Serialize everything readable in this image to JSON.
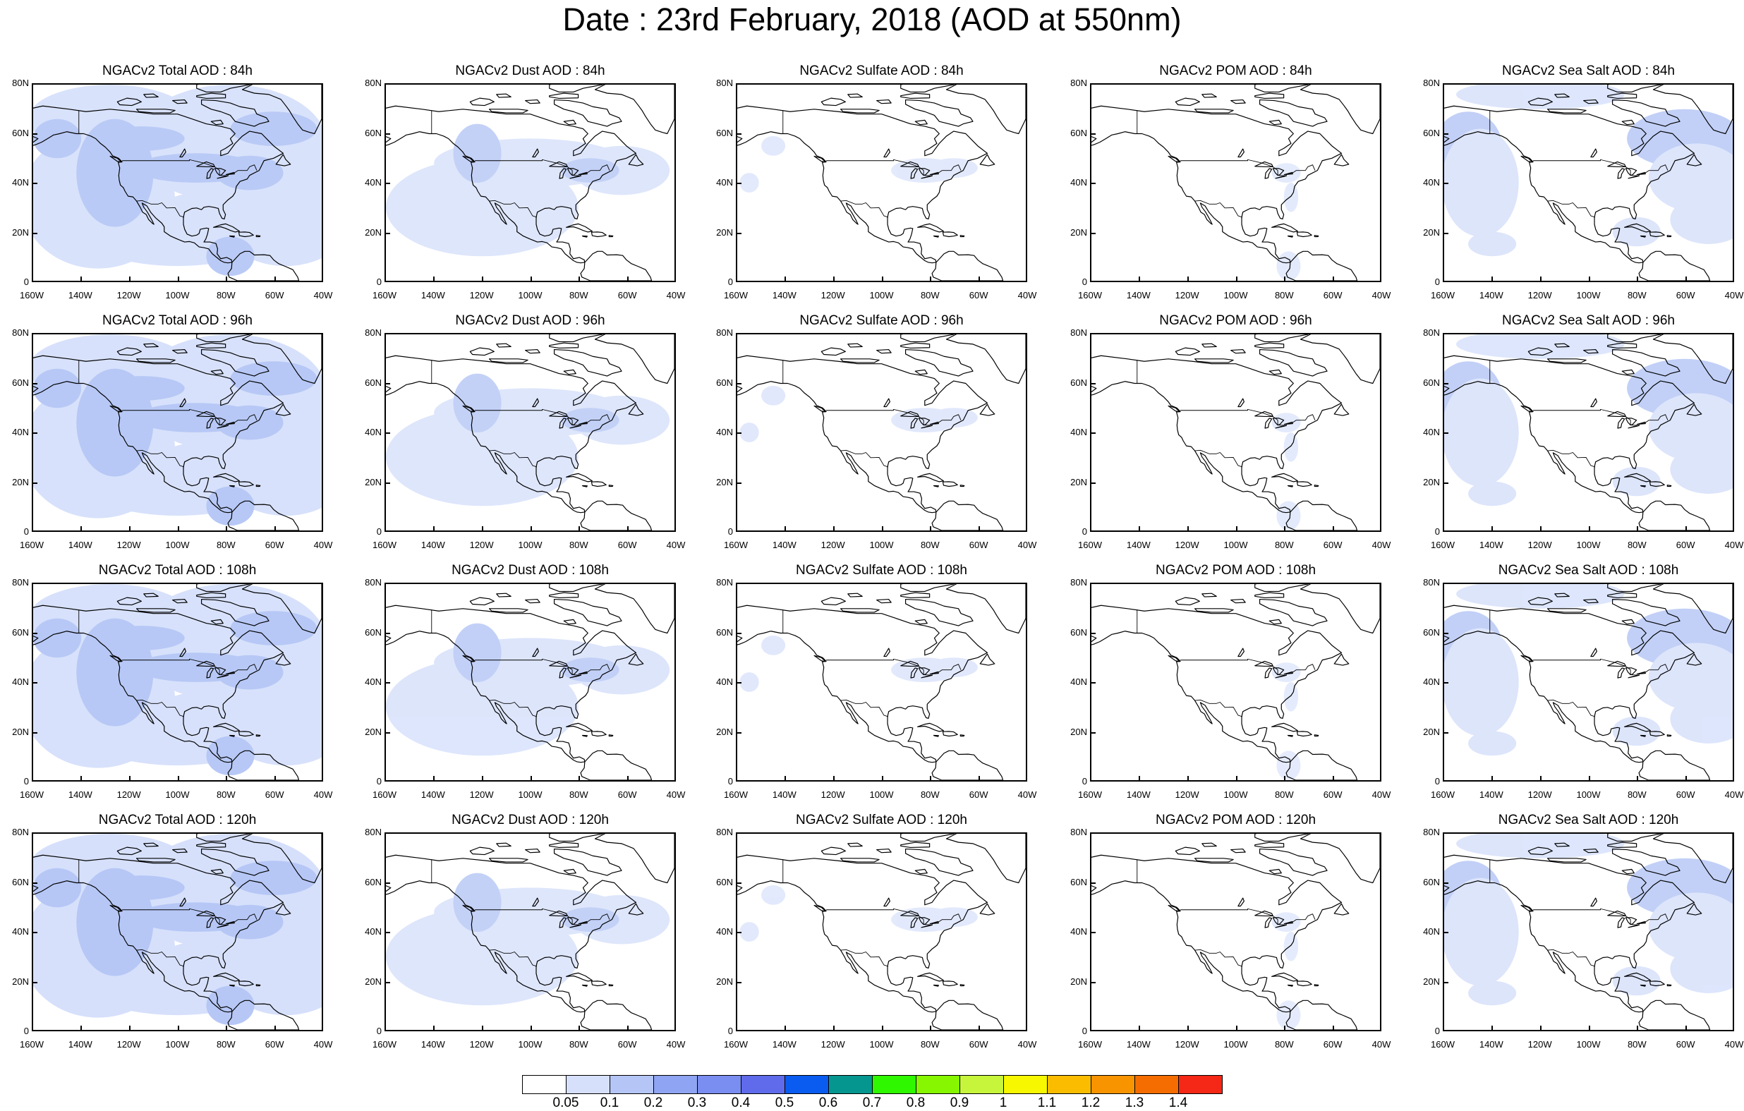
{
  "title": "Date : 23rd February, 2018 (AOD at 550nm)",
  "lat_labels": [
    "80N",
    "60N",
    "40N",
    "20N",
    "0"
  ],
  "lon_labels": [
    "160W",
    "140W",
    "120W",
    "100W",
    "80W",
    "60W",
    "40W"
  ],
  "colors": {
    "land_outline": "#000000",
    "level_1": "#d6e0fb",
    "level_2": "#b5c6f6",
    "level_3": "#8fa5f3",
    "level_4": "#7a8df0"
  },
  "panels": [
    [
      {
        "title": "NGACv2 Total AOD : 84h",
        "species": "total",
        "intensity": 0.85
      },
      {
        "title": "NGACv2 Dust AOD : 84h",
        "species": "dust",
        "intensity": 0.55
      },
      {
        "title": "NGACv2 Sulfate AOD : 84h",
        "species": "sulfate",
        "intensity": 0.3
      },
      {
        "title": "NGACv2 POM AOD : 84h",
        "species": "pom",
        "intensity": 0.25
      },
      {
        "title": "NGACv2 Sea Salt AOD : 84h",
        "species": "seasalt",
        "intensity": 0.6
      }
    ],
    [
      {
        "title": "NGACv2 Total AOD : 96h",
        "species": "total",
        "intensity": 0.9
      },
      {
        "title": "NGACv2 Dust AOD : 96h",
        "species": "dust",
        "intensity": 0.55
      },
      {
        "title": "NGACv2 Sulfate AOD : 96h",
        "species": "sulfate",
        "intensity": 0.35
      },
      {
        "title": "NGACv2 POM AOD : 96h",
        "species": "pom",
        "intensity": 0.25
      },
      {
        "title": "NGACv2 Sea Salt AOD : 96h",
        "species": "seasalt",
        "intensity": 0.6
      }
    ],
    [
      {
        "title": "NGACv2 Total AOD : 108h",
        "species": "total",
        "intensity": 0.9
      },
      {
        "title": "NGACv2 Dust AOD : 108h",
        "species": "dust",
        "intensity": 0.6
      },
      {
        "title": "NGACv2 Sulfate AOD : 108h",
        "species": "sulfate",
        "intensity": 0.35
      },
      {
        "title": "NGACv2 POM AOD : 108h",
        "species": "pom",
        "intensity": 0.2
      },
      {
        "title": "NGACv2 Sea Salt AOD : 108h",
        "species": "seasalt",
        "intensity": 0.6
      }
    ],
    [
      {
        "title": "NGACv2 Total AOD : 120h",
        "species": "total",
        "intensity": 0.95
      },
      {
        "title": "NGACv2 Dust AOD : 120h",
        "species": "dust",
        "intensity": 0.55
      },
      {
        "title": "NGACv2 Sulfate AOD : 120h",
        "species": "sulfate",
        "intensity": 0.3
      },
      {
        "title": "NGACv2 POM AOD : 120h",
        "species": "pom",
        "intensity": 0.2
      },
      {
        "title": "NGACv2 Sea Salt  AOD : 120h",
        "species": "seasalt",
        "intensity": 0.6
      }
    ]
  ],
  "colorbar": {
    "colors": [
      "#ffffff",
      "#d6e0fb",
      "#b5c6f6",
      "#8fa5f3",
      "#7a8df0",
      "#5f6bea",
      "#0a5cf0",
      "#05978f",
      "#2ff700",
      "#86f700",
      "#c6f53b",
      "#f7f700",
      "#fbbc00",
      "#f89400",
      "#f56d00",
      "#f52716"
    ],
    "labels": [
      "0.05",
      "0.1",
      "0.2",
      "0.3",
      "0.4",
      "0.5",
      "0.6",
      "0.7",
      "0.8",
      "0.9",
      "1",
      "1.1",
      "1.2",
      "1.3",
      "1.4"
    ]
  }
}
